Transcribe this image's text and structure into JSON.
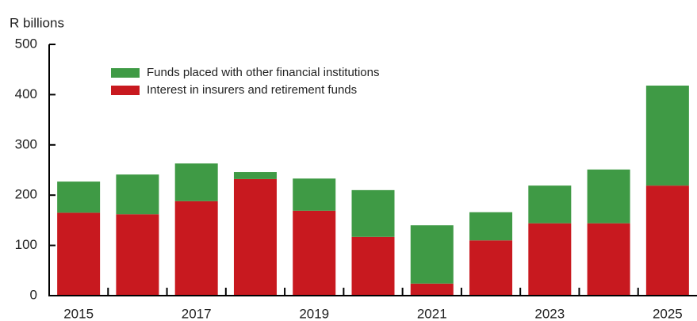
{
  "chart_data": {
    "type": "stacked_bar",
    "y_axis_label": "R billions",
    "categories": [
      "2015",
      null,
      "2017",
      null,
      "2019",
      null,
      "2021",
      null,
      "2023",
      null,
      "2025"
    ],
    "series": [
      {
        "name": "Interest in insurers and retirement funds",
        "color": "#c8191f",
        "values": [
          165,
          162,
          188,
          232,
          169,
          117,
          24,
          110,
          144,
          144,
          219
        ]
      },
      {
        "name": "Funds placed with other financial institutions",
        "color": "#3f9a45",
        "values": [
          62,
          79,
          75,
          14,
          64,
          93,
          116,
          56,
          75,
          107,
          199
        ]
      }
    ],
    "ylim": [
      0,
      500
    ],
    "yticks": [
      0,
      100,
      200,
      300,
      400,
      500
    ],
    "grid": false
  }
}
